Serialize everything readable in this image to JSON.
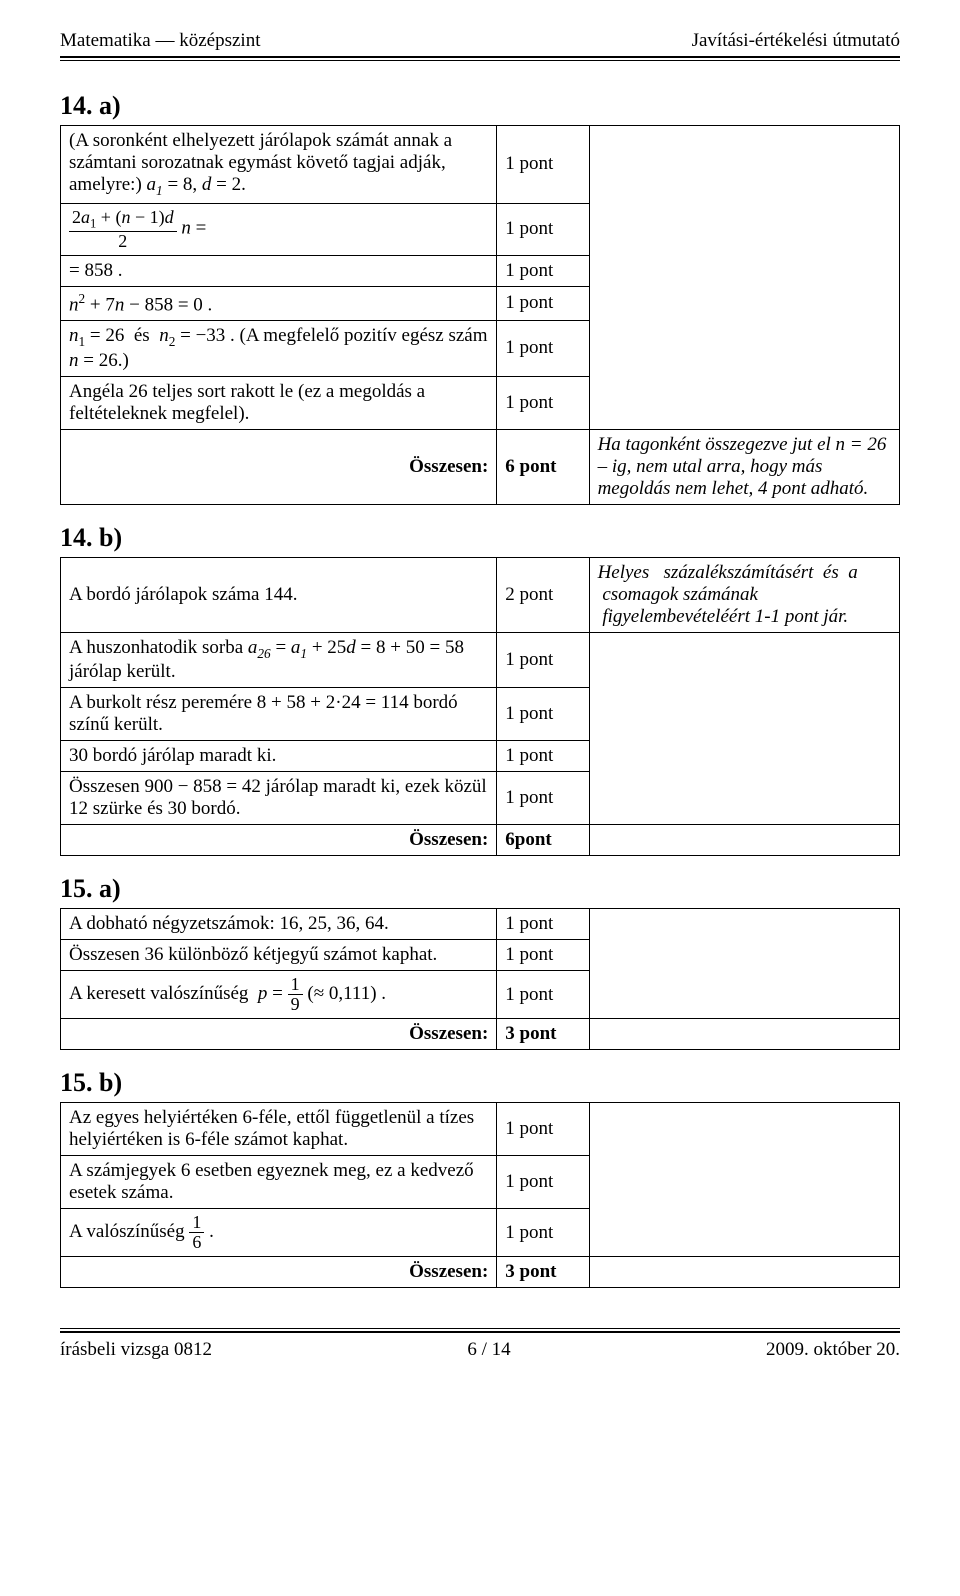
{
  "header": {
    "left": "Matematika — középszint",
    "right": "Javítási-értékelési útmutató"
  },
  "sections": {
    "s14a": {
      "heading": "14. a)",
      "rows": [
        {
          "desc_html": "(A soronként elhelyezett járólapok számát annak a számtani sorozatnak egymást követő tagjai adják, amelyre:) <span class='italic'>a<sub>1</sub></span> = 8, <span class='italic'>d</span> = 2.",
          "pts": "1 pont",
          "note": "",
          "note_rowspan": 6
        },
        {
          "desc_html": "<span class='frac'><span class='num'>2<span class='italic'>a</span><sub>1</sub> + (<span class='italic'>n</span> − 1)<span class='italic'>d</span></span><span class='den'>2</span></span> <span class='italic'>n</span> =",
          "pts": "1 pont"
        },
        {
          "desc_html": "= 858 .",
          "pts": "1 pont"
        },
        {
          "desc_html": "<span class='italic'>n</span><sup>2</sup> + 7<span class='italic'>n</span> − 858 = 0 .",
          "pts": "1 pont"
        },
        {
          "desc_html": "<span class='italic'>n</span><sub>1</sub> = 26 &nbsp;és&nbsp; <span class='italic'>n</span><sub>2</sub> = −33 . (A megfelelő pozitív egész szám <span class='italic'>n</span> = 26.)",
          "pts": "1 pont"
        },
        {
          "desc_html": "Angéla 26 teljes sort rakott le (ez a megoldás a feltételeknek megfelel).",
          "pts": "1 pont"
        }
      ],
      "total_label": "Összesen:",
      "total_pts": "6 pont",
      "total_note": "Ha tagonként összegezve jut el n = 26 – ig, nem utal arra, hogy más megoldás nem lehet, 4 pont adható."
    },
    "s14b": {
      "heading": "14. b)",
      "rows": [
        {
          "desc_html": "A bordó járólapok száma 144.",
          "pts": "2 pont",
          "note_html": "<span class='italic'>Helyes &nbsp;&nbsp;százalékszámításért &nbsp;és &nbsp;a &nbsp;csomagok számának &nbsp;figyelembevételéért 1-1 pont jár.</span>"
        },
        {
          "desc_html": "A huszonhatodik sorba <span class='italic'>a<sub>26</sub></span> = <span class='italic'>a<sub>1</sub></span> + 25<span class='italic'>d</span> = 8 + 50 = 58 járólap került.",
          "pts": "1 pont",
          "note": "",
          "note_rowspan": 4
        },
        {
          "desc_html": "A burkolt rész peremére 8 + 58 + 2·24 = 114 bordó színű került.",
          "pts": "1 pont"
        },
        {
          "desc_html": "30 bordó járólap maradt ki.",
          "pts": "1 pont"
        },
        {
          "desc_html": "Összesen 900 − 858 = 42 járólap maradt ki, ezek közül 12 szürke és 30 bordó.",
          "pts": "1 pont"
        }
      ],
      "total_label": "Összesen:",
      "total_pts": "6pont",
      "total_note": ""
    },
    "s15a": {
      "heading": "15. a)",
      "rows": [
        {
          "desc_html": "A dobható négyzetszámok: 16, 25, 36, 64.",
          "pts": "1 pont",
          "note": "",
          "note_rowspan": 3
        },
        {
          "desc_html": "Összesen 36 különböző kétjegyű számot kaphat.",
          "pts": "1 pont"
        },
        {
          "desc_html": "A keresett valószínűség&nbsp; <span class='italic'>p</span> = <span class='frac'><span class='num'>1</span><span class='den'>9</span></span> (≈ 0,111) .",
          "pts": "1 pont"
        }
      ],
      "total_label": "Összesen:",
      "total_pts": "3 pont",
      "total_note": ""
    },
    "s15b": {
      "heading": "15. b)",
      "rows": [
        {
          "desc_html": "Az egyes helyiértéken 6-féle, ettől függetlenül a tízes helyiértéken is 6-féle számot kaphat.",
          "pts": "1 pont",
          "note": "",
          "note_rowspan": 3
        },
        {
          "desc_html": "A számjegyek 6 esetben egyeznek meg, ez a kedvező esetek száma.",
          "pts": "1 pont"
        },
        {
          "desc_html": "A valószínűség <span class='frac'><span class='num'>1</span><span class='den'>6</span></span> .",
          "pts": "1 pont"
        }
      ],
      "total_label": "Összesen:",
      "total_pts": "3 pont",
      "total_note": ""
    }
  },
  "footer": {
    "left": "írásbeli vizsga 0812",
    "center": "6 / 14",
    "right": "2009. október 20."
  }
}
